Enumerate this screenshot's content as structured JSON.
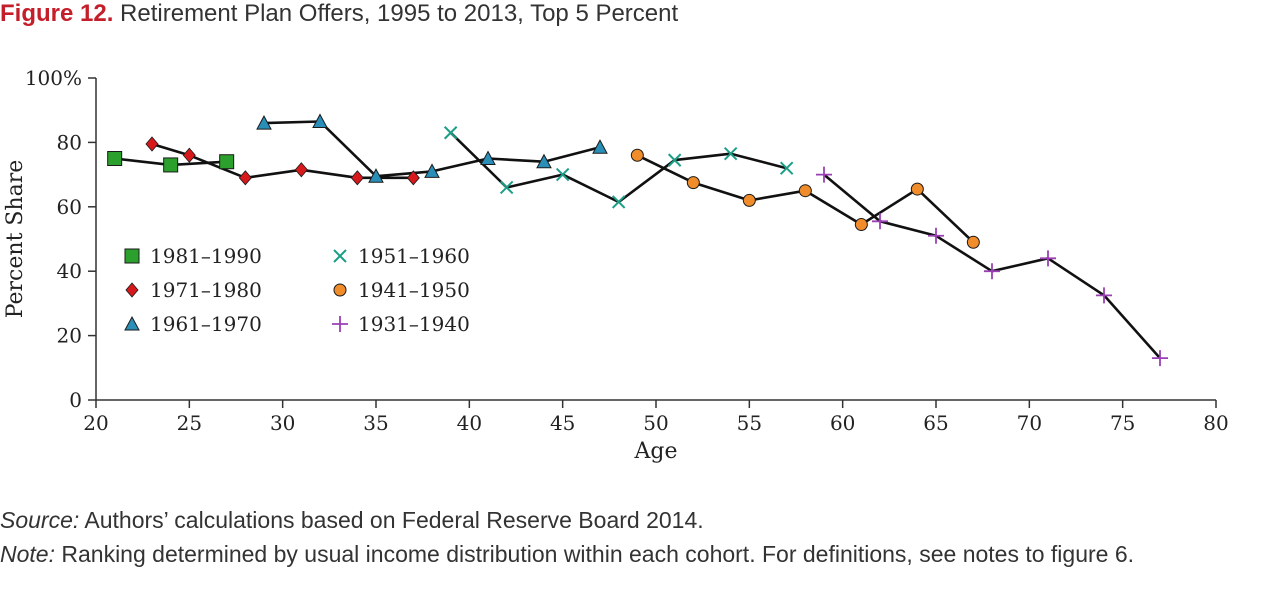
{
  "figure": {
    "label": "Figure 12.",
    "title": "Retirement Plan Offers, 1995 to 2013, Top 5 Percent"
  },
  "source": {
    "label": "Source:",
    "text": "Authors’ calculations based on Federal Reserve Board 2014."
  },
  "note": {
    "label": "Note:",
    "text": "Ranking determined by usual income distribution within each cohort. For definitions, see notes to figure 6."
  },
  "chart_data": {
    "type": "line",
    "xlabel": "Age",
    "ylabel": "Percent Share",
    "xlim": [
      20,
      80
    ],
    "ylim": [
      0,
      100
    ],
    "xticks": [
      "20",
      "25",
      "30",
      "35",
      "40",
      "45",
      "50",
      "55",
      "60",
      "65",
      "70",
      "75",
      "80"
    ],
    "yticks": [
      "0",
      "20",
      "40",
      "60",
      "80",
      "100%"
    ],
    "grid": false,
    "legend_position": "bottom-left",
    "series": [
      {
        "name": "1981–1990",
        "marker": "square",
        "color": "#2ca02c",
        "x": [
          21,
          24,
          27
        ],
        "y": [
          75,
          73,
          74
        ]
      },
      {
        "name": "1971–1980",
        "marker": "diamond",
        "color": "#d7191c",
        "x": [
          23,
          25,
          28,
          31,
          34,
          37
        ],
        "y": [
          79.5,
          76,
          69,
          71.5,
          69,
          69
        ]
      },
      {
        "name": "1961–1970",
        "marker": "triangle",
        "color": "#2a8fb8",
        "x": [
          29,
          32,
          35,
          38,
          41,
          44,
          47
        ],
        "y": [
          86,
          86.5,
          69.5,
          71,
          75,
          74,
          78.5
        ]
      },
      {
        "name": "1951–1960",
        "marker": "x",
        "color": "#1a9e86",
        "x": [
          39,
          42,
          45,
          48,
          51,
          54,
          57
        ],
        "y": [
          83,
          66,
          70,
          61.5,
          74.5,
          76.5,
          72
        ]
      },
      {
        "name": "1941–1950",
        "marker": "circle",
        "color": "#f08c2a",
        "x": [
          49,
          52,
          55,
          58,
          61,
          64,
          67
        ],
        "y": [
          76,
          67.5,
          62,
          65,
          54.5,
          65.5,
          49
        ]
      },
      {
        "name": "1931–1940",
        "marker": "plus",
        "color": "#9b3fb5",
        "x": [
          59,
          62,
          65,
          68,
          71,
          74,
          77
        ],
        "y": [
          70,
          55.5,
          51,
          40,
          44,
          32.5,
          13
        ]
      }
    ]
  }
}
